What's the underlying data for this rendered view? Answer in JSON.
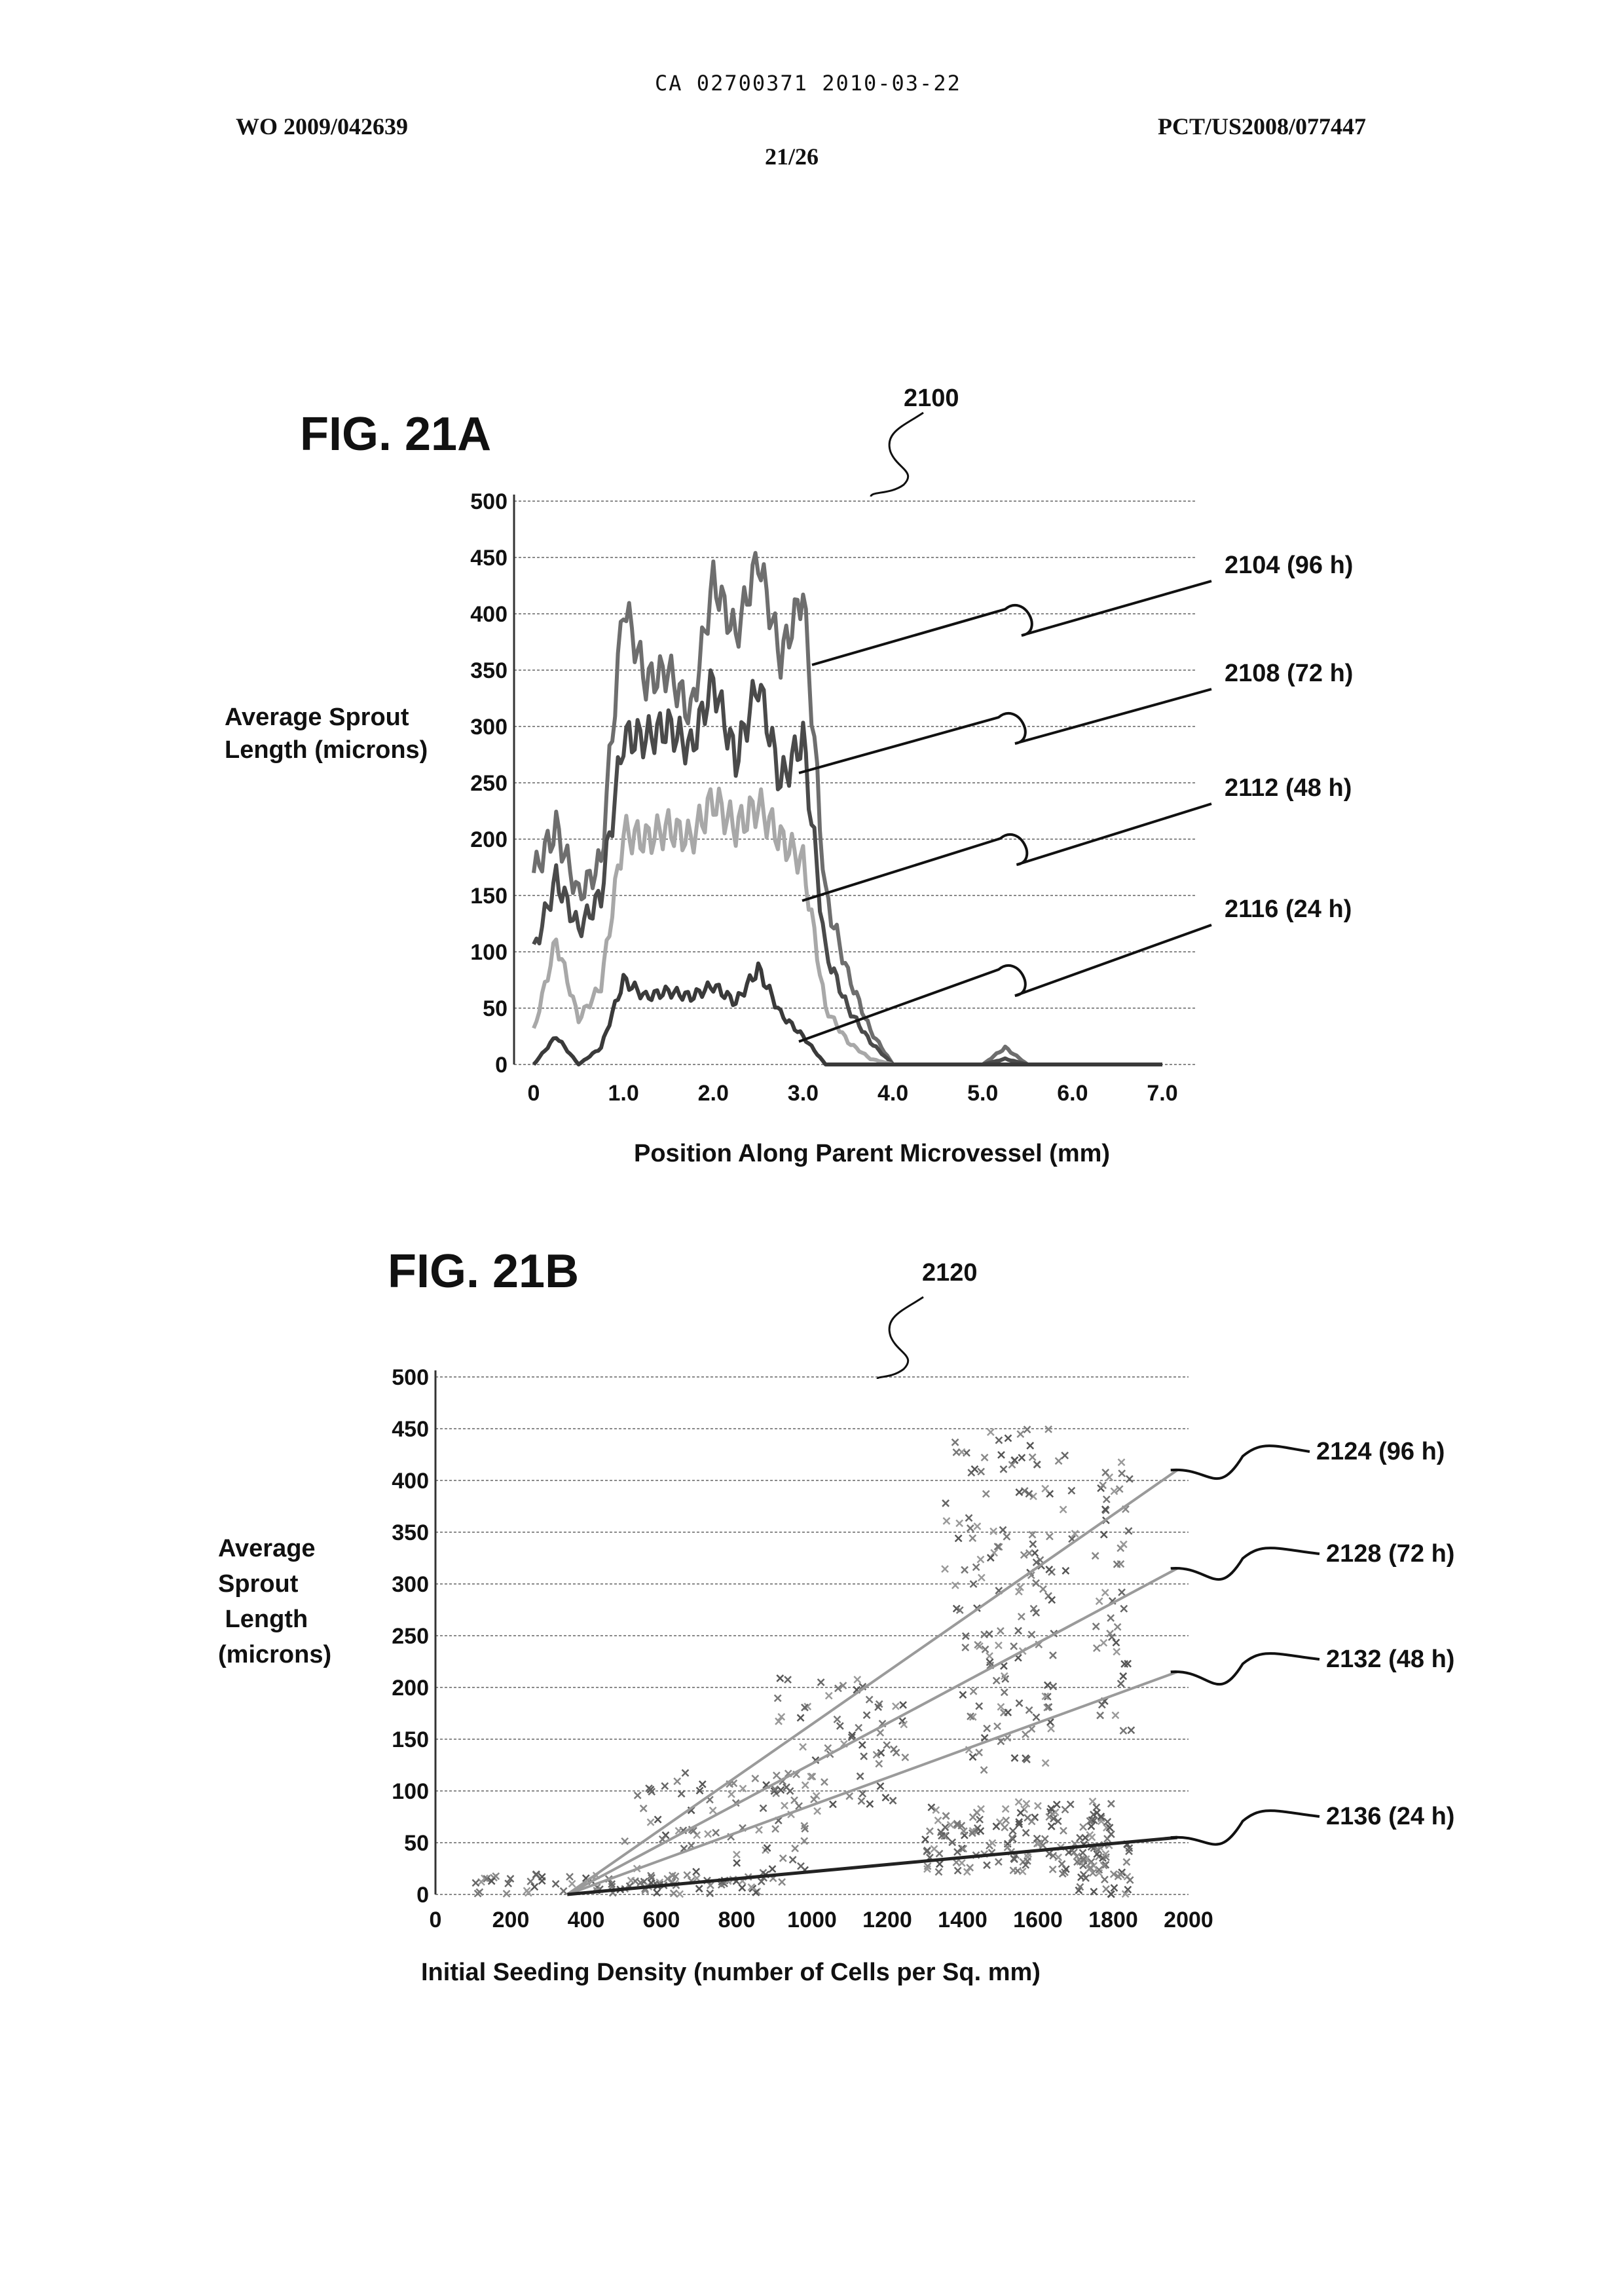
{
  "header": {
    "ca_number": "CA 02700371 2010-03-22",
    "wo_number": "WO 2009/042639",
    "pct_number": "PCT/US2008/077447",
    "page": "21/26"
  },
  "fig_a": {
    "title": "FIG. 21A",
    "ref": "2100",
    "ylabel_lines": [
      "Average Sprout",
      "Length (microns)"
    ],
    "xlabel": "Position Along Parent Microvessel (mm)",
    "leaders": [
      {
        "label": "2104 (96 h)",
        "color": "#6e6e6e"
      },
      {
        "label": "2108 (72 h)",
        "color": "#4a4a4a"
      },
      {
        "label": "2112 (48 h)",
        "color": "#a8a8a8"
      },
      {
        "label": "2116 (24 h)",
        "color": "#3a3a3a"
      }
    ]
  },
  "fig_b": {
    "title": "FIG. 21B",
    "ref": "2120",
    "ylabel_lines": [
      "Average",
      "Sprout",
      " Length",
      "(microns)"
    ],
    "xlabel": "Initial Seeding Density (number of Cells per Sq. mm)",
    "leaders": [
      {
        "label": "2124 (96 h)"
      },
      {
        "label": "2128 (72 h)"
      },
      {
        "label": "2132 (48 h)"
      },
      {
        "label": "2136 (24 h)"
      }
    ]
  },
  "chart_data": [
    {
      "type": "line",
      "xlim": [
        0,
        7.0
      ],
      "ylim": [
        0,
        500
      ],
      "x_ticks": [
        "0",
        "1.0",
        "2.0",
        "3.0",
        "4.0",
        "5.0",
        "6.0",
        "7.0"
      ],
      "y_ticks": [
        "0",
        "50",
        "100",
        "150",
        "200",
        "250",
        "300",
        "350",
        "400",
        "450",
        "500"
      ],
      "grid": true,
      "x": [
        0,
        0.25,
        0.5,
        0.75,
        1.0,
        1.25,
        1.5,
        1.75,
        2.0,
        2.25,
        2.5,
        2.75,
        3.0,
        3.25,
        3.5,
        3.75,
        4.0,
        4.5,
        5.0,
        5.25,
        5.5,
        6.0,
        7.0
      ],
      "series": [
        {
          "name": "2104 (96 h)",
          "color": "#6e6e6e",
          "values": [
            170,
            210,
            150,
            180,
            410,
            340,
            350,
            310,
            430,
            380,
            450,
            360,
            420,
            150,
            80,
            30,
            0,
            0,
            0,
            15,
            0,
            0,
            0
          ]
        },
        {
          "name": "2108 (72 h)",
          "color": "#4a4a4a",
          "values": [
            100,
            165,
            120,
            150,
            290,
            290,
            300,
            280,
            340,
            270,
            340,
            250,
            290,
            100,
            50,
            20,
            0,
            0,
            0,
            5,
            0,
            0,
            0
          ]
        },
        {
          "name": "2112 (48 h)",
          "color": "#a8a8a8",
          "values": [
            30,
            110,
            40,
            70,
            205,
            200,
            210,
            200,
            235,
            210,
            230,
            200,
            180,
            50,
            20,
            5,
            0,
            0,
            0,
            0,
            0,
            0,
            0
          ]
        },
        {
          "name": "2116 (24 h)",
          "color": "#3a3a3a",
          "values": [
            0,
            25,
            0,
            15,
            75,
            60,
            65,
            60,
            70,
            55,
            85,
            45,
            25,
            0,
            0,
            0,
            0,
            0,
            0,
            0,
            0,
            0,
            0
          ]
        }
      ]
    },
    {
      "type": "scatter",
      "xlim": [
        0,
        2000
      ],
      "ylim": [
        0,
        500
      ],
      "x_ticks": [
        "0",
        "200",
        "400",
        "600",
        "800",
        "1000",
        "1200",
        "1400",
        "1600",
        "1800",
        "2000"
      ],
      "y_ticks": [
        "0",
        "50",
        "100",
        "150",
        "200",
        "250",
        "300",
        "350",
        "400",
        "450",
        "500"
      ],
      "grid": true,
      "trendlines": [
        {
          "name": "2124 (96 h)",
          "x": [
            350,
            1970
          ],
          "y": [
            0,
            410
          ]
        },
        {
          "name": "2128 (72 h)",
          "x": [
            350,
            1970
          ],
          "y": [
            0,
            315
          ]
        },
        {
          "name": "2132 (48 h)",
          "x": [
            350,
            1970
          ],
          "y": [
            0,
            215
          ]
        },
        {
          "name": "2136 (24 h)",
          "x": [
            350,
            1970
          ],
          "y": [
            0,
            55
          ]
        }
      ],
      "clusters": [
        {
          "x": [
            1350,
            1700
          ],
          "y": [
            250,
            450
          ],
          "n": 90
        },
        {
          "x": [
            1750,
            1850
          ],
          "y": [
            150,
            420
          ],
          "n": 45
        },
        {
          "x": [
            900,
            1250
          ],
          "y": [
            80,
            210
          ],
          "n": 70
        },
        {
          "x": [
            500,
            1000
          ],
          "y": [
            10,
            120
          ],
          "n": 70
        },
        {
          "x": [
            1300,
            1800
          ],
          "y": [
            20,
            90
          ],
          "n": 150
        },
        {
          "x": [
            100,
            900
          ],
          "y": [
            0,
            20
          ],
          "n": 80
        },
        {
          "x": [
            1400,
            1650
          ],
          "y": [
            120,
            260
          ],
          "n": 55
        },
        {
          "x": [
            1700,
            1850
          ],
          "y": [
            0,
            60
          ],
          "n": 40
        }
      ]
    }
  ]
}
